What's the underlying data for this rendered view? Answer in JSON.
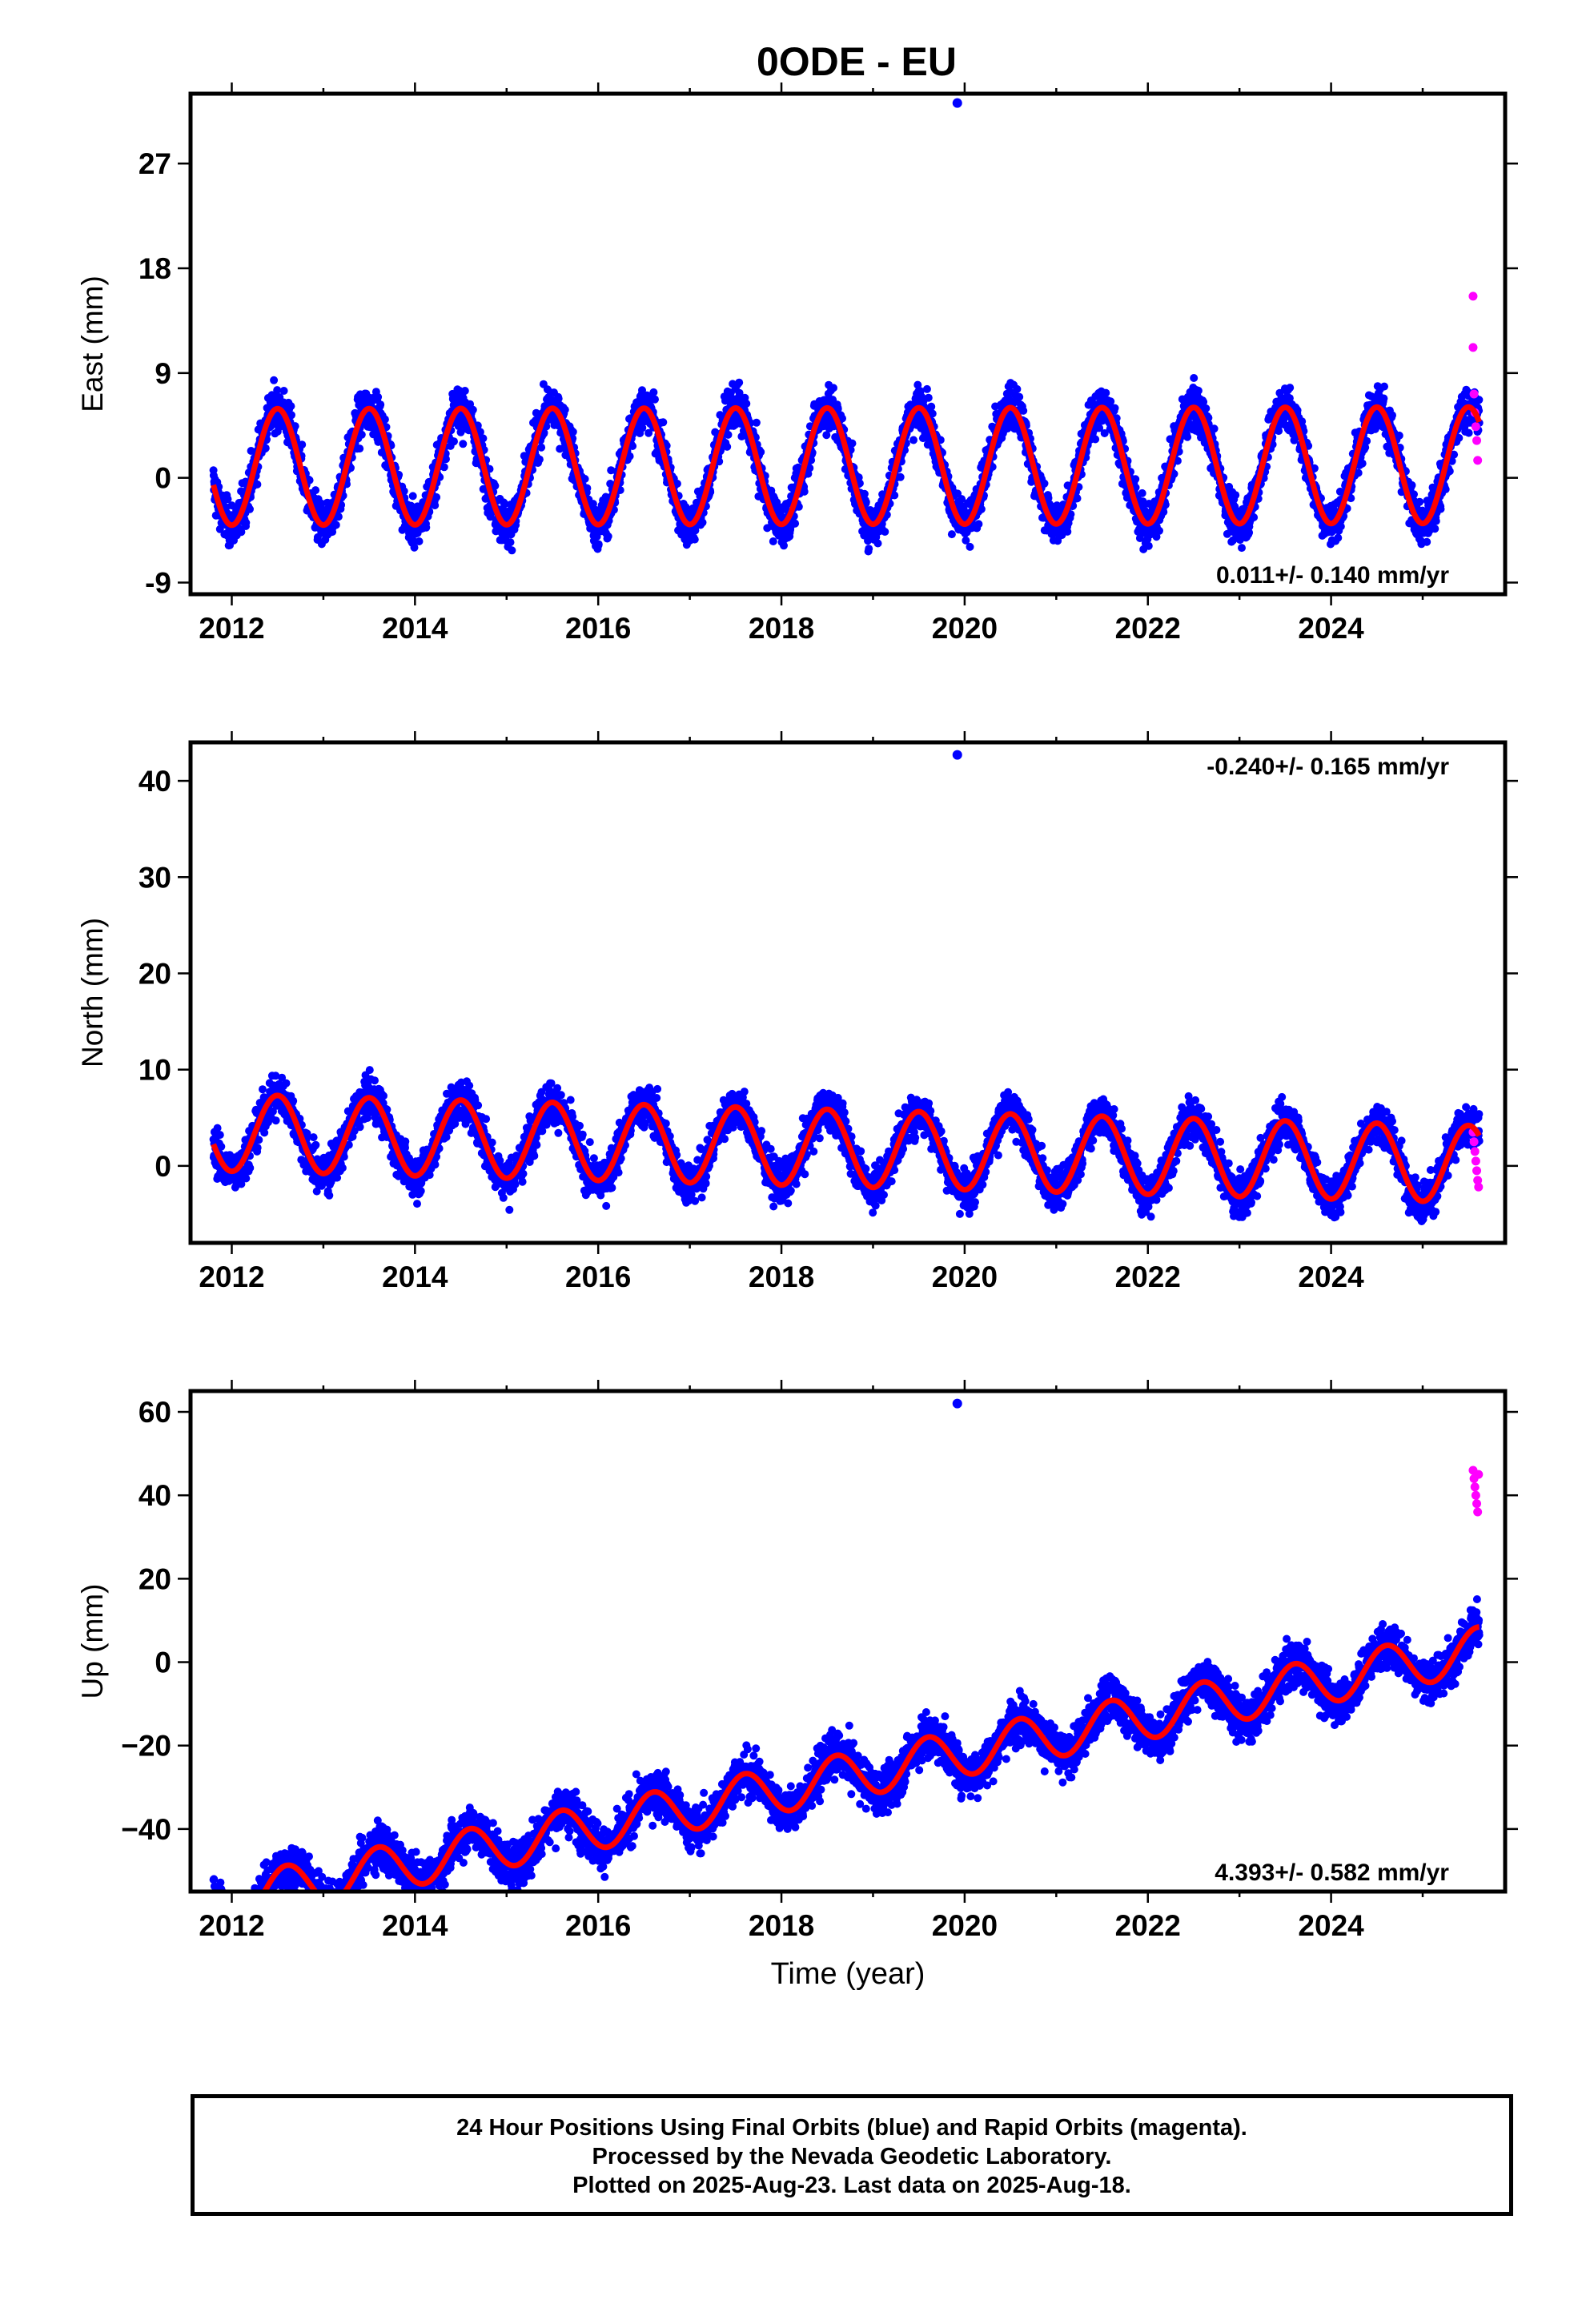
{
  "title": "0ODE - EU",
  "caption": {
    "line1": "24 Hour Positions Using Final Orbits (blue) and Rapid Orbits (magenta).",
    "line2": "Processed by the Nevada Geodetic Laboratory.",
    "line3": "Plotted on 2025-Aug-23. Last data on 2025-Aug-18."
  },
  "colors": {
    "final": "#0000ff",
    "rapid": "#ff00ff",
    "model": "#ff0000",
    "axes": "#000000"
  },
  "chart_data": [
    {
      "type": "scatter",
      "ylabel": "East (mm)",
      "xlim": [
        2011.55,
        2025.9
      ],
      "ylim": [
        -10,
        33
      ],
      "yticks": [
        "-9",
        "0",
        "9",
        "18",
        "27"
      ],
      "xticks": [
        "2012",
        "2014",
        "2016",
        "2018",
        "2020",
        "2022",
        "2024"
      ],
      "rate": "0.011+/- 0.140 mm/yr",
      "rate_position": "bottom-right",
      "data_span": [
        2011.8,
        2025.62
      ],
      "model": {
        "offset": 1.0,
        "slope": 0.011,
        "seasonal_amplitude": 5.0,
        "peak_phase": 0.5
      },
      "scatter_spread": 1.6,
      "outliers": [
        {
          "x": 2019.92,
          "y": 32.2
        }
      ],
      "rapid_points": [
        {
          "x": 2025.55,
          "y": 15.6
        },
        {
          "x": 2025.55,
          "y": 11.2
        },
        {
          "x": 2025.56,
          "y": 7.2
        },
        {
          "x": 2025.57,
          "y": 5.6
        },
        {
          "x": 2025.58,
          "y": 4.4
        },
        {
          "x": 2025.59,
          "y": 3.2
        },
        {
          "x": 2025.6,
          "y": 1.5
        }
      ]
    },
    {
      "type": "scatter",
      "ylabel": "North (mm)",
      "xlim": [
        2011.55,
        2025.9
      ],
      "ylim": [
        -8,
        44
      ],
      "yticks": [
        "0",
        "10",
        "20",
        "30",
        "40"
      ],
      "xticks": [
        "2012",
        "2014",
        "2016",
        "2018",
        "2020",
        "2022",
        "2024"
      ],
      "rate": "-0.240+/- 0.165 mm/yr",
      "rate_position": "top-right",
      "data_span": [
        2011.8,
        2025.62
      ],
      "model": {
        "offset": 2.0,
        "slope": -0.24,
        "seasonal_amplitude": 4.0,
        "peak_phase": 0.5
      },
      "scatter_spread": 1.8,
      "outliers": [
        {
          "x": 2019.92,
          "y": 42.7
        }
      ],
      "rapid_points": [
        {
          "x": 2025.55,
          "y": 3.5
        },
        {
          "x": 2025.56,
          "y": 2.5
        },
        {
          "x": 2025.57,
          "y": 1.5
        },
        {
          "x": 2025.58,
          "y": 0.5
        },
        {
          "x": 2025.59,
          "y": -0.5
        },
        {
          "x": 2025.6,
          "y": -1.5
        },
        {
          "x": 2025.61,
          "y": -2.2
        }
      ]
    },
    {
      "type": "scatter",
      "ylabel": "Up (mm)",
      "xlabel": "Time (year)",
      "xlim": [
        2011.55,
        2025.9
      ],
      "ylim": [
        -55,
        65
      ],
      "yticks": [
        "−40",
        "−20",
        "0",
        "20",
        "40",
        "60"
      ],
      "xticks": [
        "2012",
        "2014",
        "2016",
        "2018",
        "2020",
        "2022",
        "2024"
      ],
      "rate": "4.393+/- 0.582 mm/yr",
      "rate_position": "bottom-right",
      "data_span": [
        2011.8,
        2025.62
      ],
      "model": {
        "offset": -30.5,
        "slope": 4.393,
        "seasonal_amplitude": 5.5,
        "peak_phase": 0.6
      },
      "scatter_spread": 4.5,
      "outliers": [
        {
          "x": 2019.92,
          "y": 62.0
        }
      ],
      "rapid_points": [
        {
          "x": 2025.55,
          "y": 46
        },
        {
          "x": 2025.56,
          "y": 44
        },
        {
          "x": 2025.57,
          "y": 42
        },
        {
          "x": 2025.58,
          "y": 40
        },
        {
          "x": 2025.59,
          "y": 38
        },
        {
          "x": 2025.6,
          "y": 36
        },
        {
          "x": 2025.61,
          "y": 45
        }
      ]
    }
  ]
}
